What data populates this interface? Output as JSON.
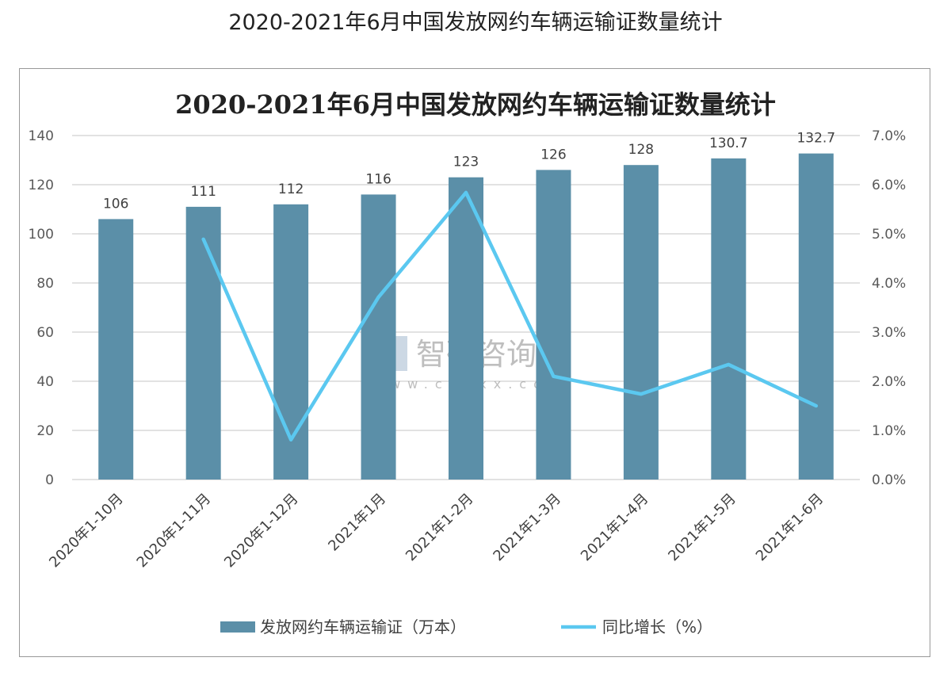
{
  "page_title": "2020-2021年6月中国发放网约车辆运输证数量统计",
  "watermark": {
    "brand": "智研咨询",
    "url": "www.chyxx.com"
  },
  "chart_data": {
    "type": "bar+line",
    "title": "2020-2021年6月中国发放网约车辆运输证数量统计",
    "categories": [
      "2020年1-10月",
      "2020年1-11月",
      "2020年1-12月",
      "2021年1月",
      "2021年1-2月",
      "2021年1-3月",
      "2021年1-4月",
      "2021年1-5月",
      "2021年1-6月"
    ],
    "series": [
      {
        "name": "发放网约车辆运输证（万本）",
        "type": "bar",
        "axis": "left",
        "color": "#5b8fa8",
        "values": [
          106,
          111,
          112,
          116,
          123,
          126,
          128,
          130.7,
          132.7
        ],
        "labels": [
          "106",
          "111",
          "112",
          "116",
          "123",
          "126",
          "128",
          "130.7",
          "132.7"
        ]
      },
      {
        "name": "同比增长（%）",
        "type": "line",
        "axis": "right",
        "color": "#5bc8f0",
        "values": [
          null,
          4.89,
          0.81,
          3.71,
          5.84,
          2.1,
          1.74,
          2.34,
          1.5
        ]
      }
    ],
    "y_left": {
      "min": 0,
      "max": 140,
      "ticks": [
        "0",
        "20",
        "40",
        "60",
        "80",
        "100",
        "120",
        "140"
      ]
    },
    "y_right": {
      "min": 0,
      "max": 7,
      "ticks": [
        "0.0%",
        "1.0%",
        "2.0%",
        "3.0%",
        "4.0%",
        "5.0%",
        "6.0%",
        "7.0%"
      ]
    },
    "grid": true,
    "legend": "bottom"
  }
}
